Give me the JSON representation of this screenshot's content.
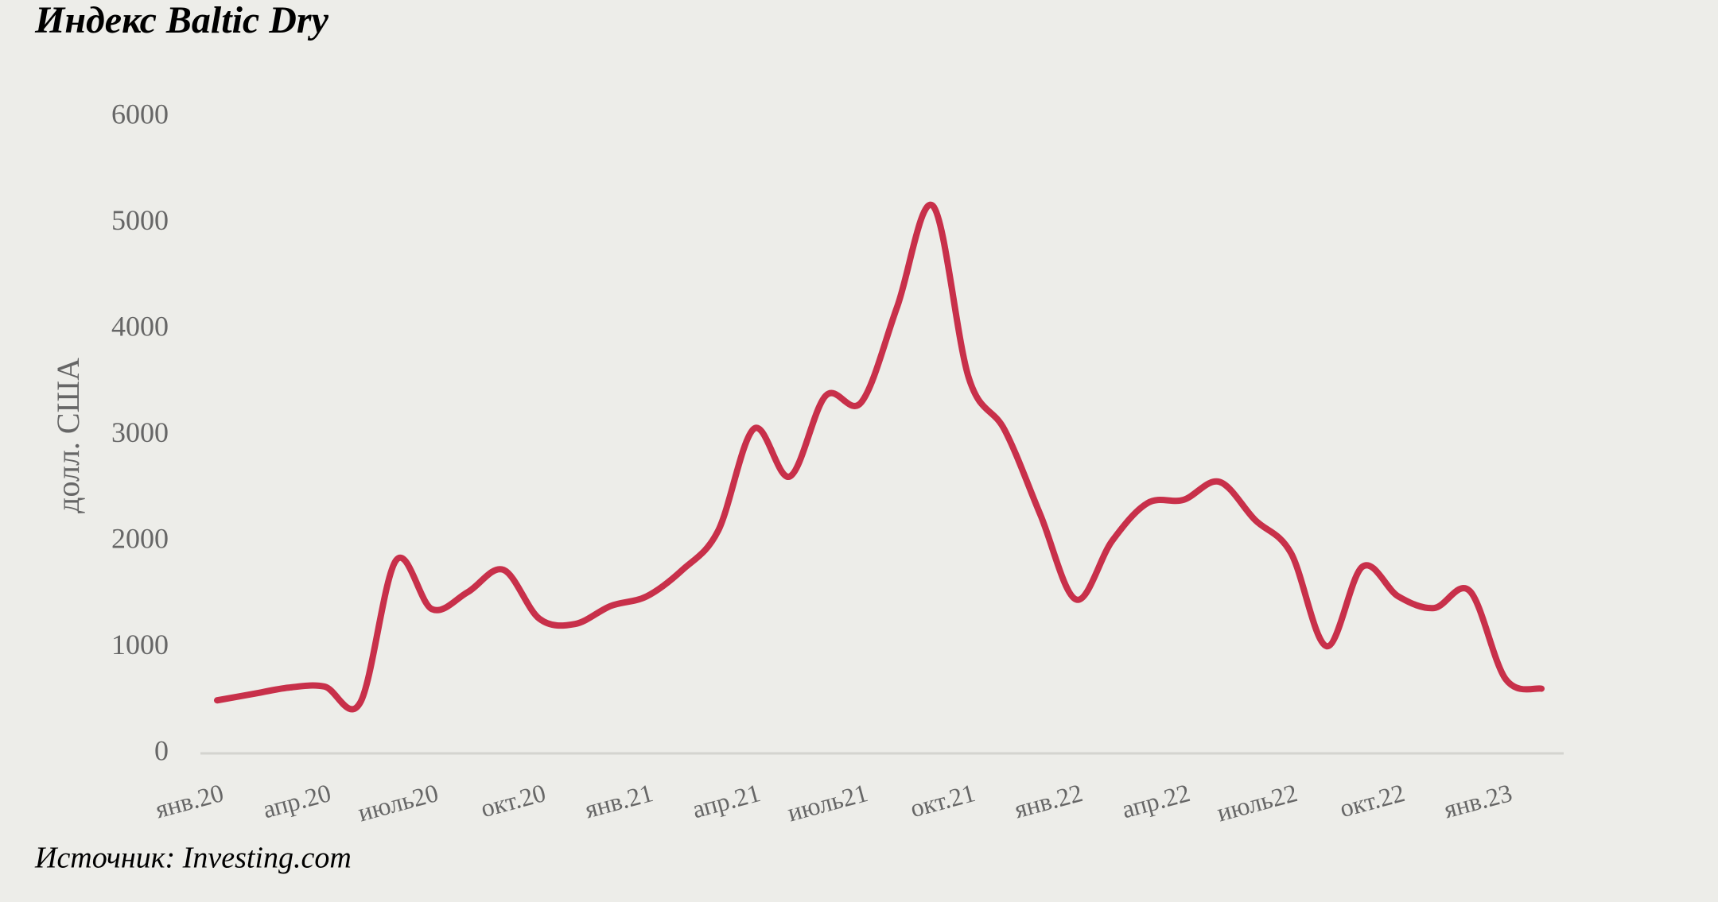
{
  "chart_data": {
    "type": "line",
    "title": "Индекс Baltic Dry",
    "y_label": "долл. США",
    "source": "Источник: Investing.com",
    "categories": [
      "янв.20",
      null,
      null,
      "апр.20",
      null,
      null,
      "июль20",
      null,
      null,
      "окт.20",
      null,
      null,
      "янв.21",
      null,
      null,
      "апр.21",
      null,
      null,
      "июль21",
      null,
      null,
      "окт.21",
      null,
      null,
      "янв.22",
      null,
      null,
      "апр.22",
      null,
      null,
      "июль22",
      null,
      null,
      "окт.22",
      null,
      null,
      "янв.23",
      null
    ],
    "series": [
      {
        "name": "Индекс Baltic Dry",
        "color": "#c8304a",
        "values": [
          500,
          560,
          620,
          630,
          480,
          1820,
          1360,
          1520,
          1730,
          1270,
          1220,
          1390,
          1480,
          1730,
          2100,
          3060,
          2610,
          3370,
          3310,
          4210,
          5160,
          3540,
          3050,
          2250,
          1450,
          2000,
          2360,
          2390,
          2560,
          2200,
          1890,
          1010,
          1760,
          1480,
          1370,
          1530,
          700,
          610
        ]
      }
    ],
    "ylim": [
      0,
      6000
    ],
    "yticks": [
      0,
      1000,
      2000,
      3000,
      4000,
      5000,
      6000
    ],
    "grid": false
  }
}
